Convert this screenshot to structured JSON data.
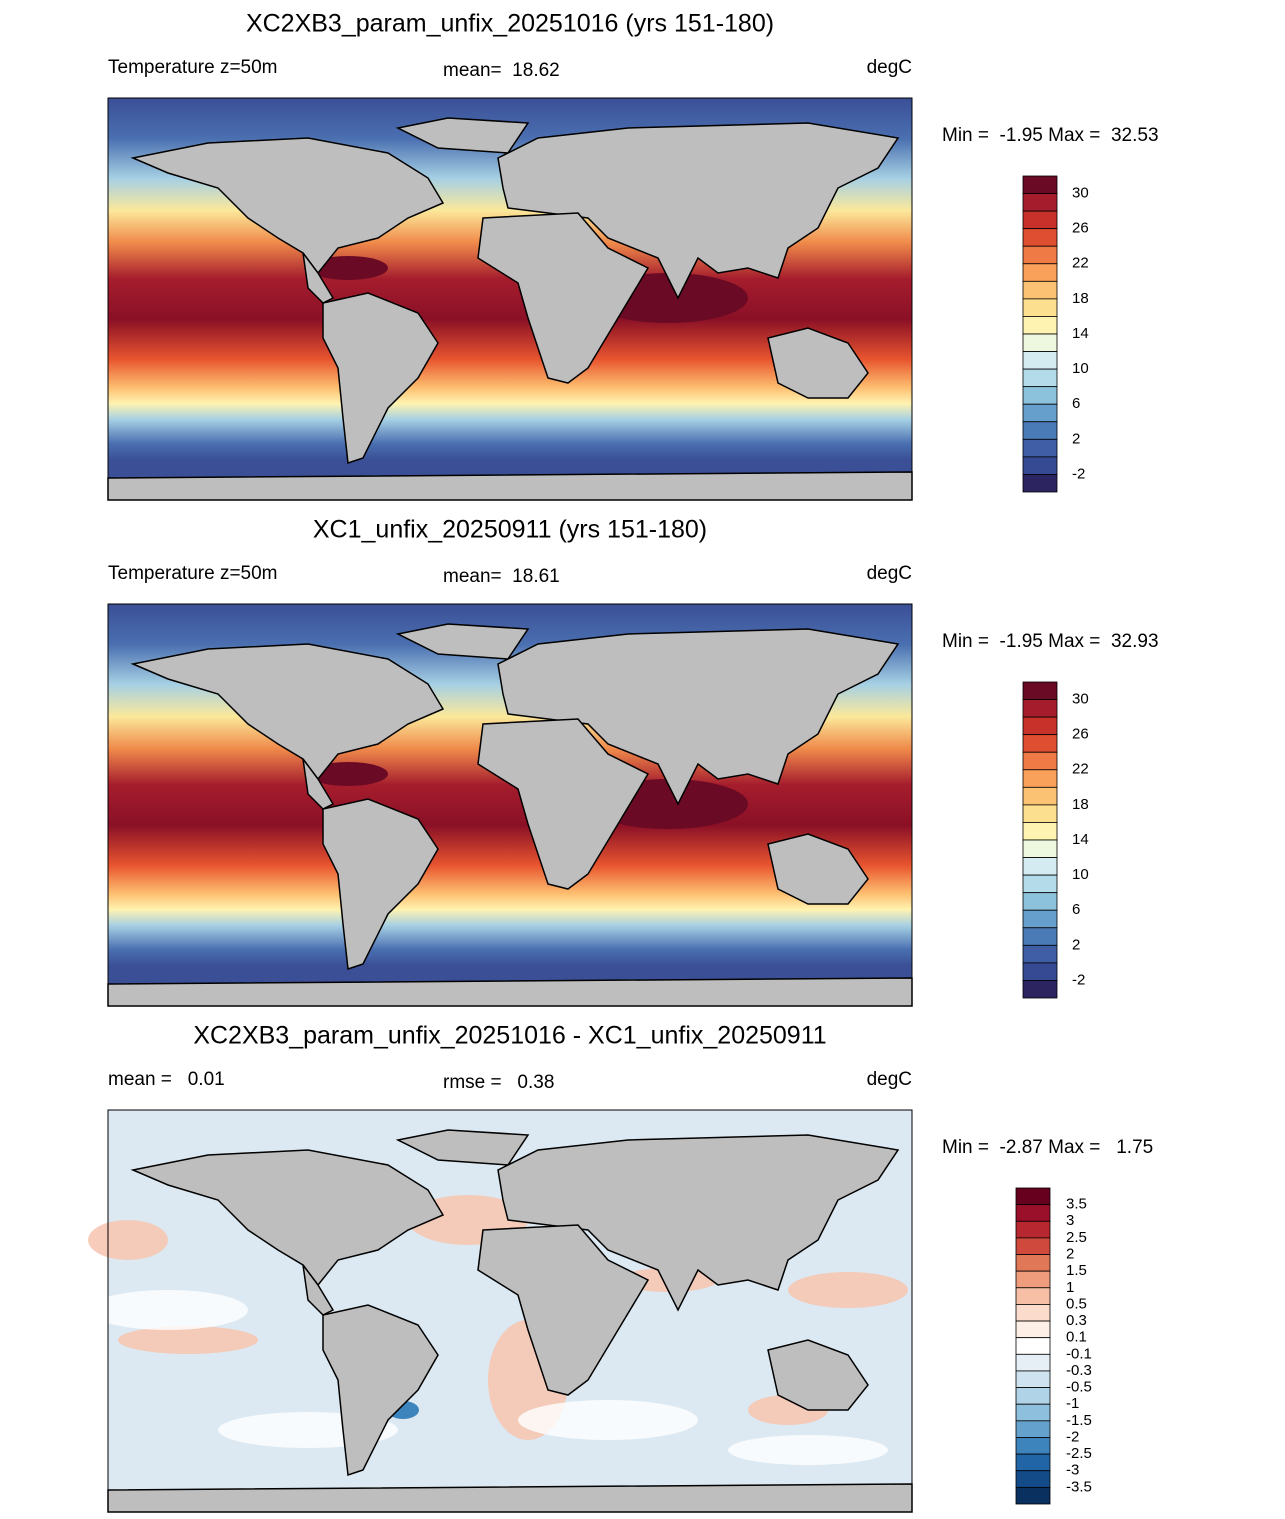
{
  "panels": [
    {
      "title": "XC2XB3_param_unfix_20251016 (yrs 151-180)",
      "left": "Temperature z=50m",
      "center": "mean=  18.62",
      "right": "degC",
      "minmax": "Min =  -1.95 Max =  32.53",
      "colorbar": [
        "30",
        "26",
        "22",
        "18",
        "14",
        "10",
        "6",
        "2",
        "-2"
      ]
    },
    {
      "title": "XC1_unfix_20250911 (yrs 151-180)",
      "left": "Temperature z=50m",
      "center": "mean=  18.61",
      "right": "degC",
      "minmax": "Min =  -1.95 Max =  32.93",
      "colorbar": [
        "30",
        "26",
        "22",
        "18",
        "14",
        "10",
        "6",
        "2",
        "-2"
      ]
    },
    {
      "title": "XC2XB3_param_unfix_20251016 - XC1_unfix_20250911",
      "left": "mean =   0.01",
      "center": "rmse =   0.38",
      "right": "degC",
      "minmax": "Min =  -2.87 Max =   1.75",
      "colorbar": [
        "3.5",
        "3",
        "2.5",
        "2",
        "1.5",
        "1",
        "0.5",
        "0.3",
        "0.1",
        "-0.1",
        "-0.3",
        "-0.5",
        "-1",
        "-1.5",
        "-2",
        "-2.5",
        "-3",
        "-3.5"
      ]
    }
  ]
}
